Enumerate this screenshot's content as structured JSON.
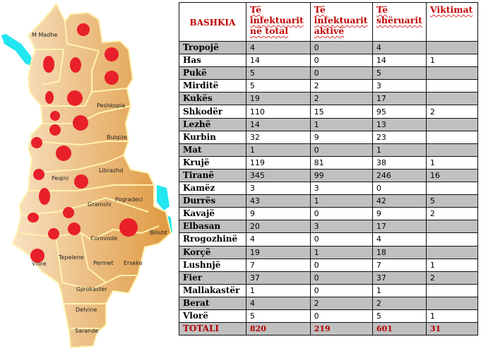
{
  "map": {
    "colors": {
      "land": "#e3a24a",
      "land_light": "#f6dcb6",
      "border": "#fff2b0",
      "water": "#22e6f0",
      "dot": "#e8202a"
    },
    "labels": [
      "M Madhe",
      "Peshkopia",
      "Bulqize",
      "Librazhd",
      "Peqini",
      "Gramshi",
      "Pogradeci",
      "Bilisht",
      "Corovode",
      "Tepelene",
      "Permet",
      "Erseke",
      "Gjirokaster",
      "Delvine",
      "Sarande",
      "Vlore"
    ]
  },
  "table": {
    "headers": [
      "BASHKIA",
      "Të infektuarit në total",
      "Të infektuarit aktivë",
      "Të shëruarit",
      "Viktimat"
    ],
    "rows": [
      [
        "Tropojë",
        "4",
        "0",
        "4",
        ""
      ],
      [
        "Has",
        "14",
        "0",
        "14",
        "1"
      ],
      [
        "Pukë",
        "5",
        "0",
        "5",
        ""
      ],
      [
        "Mirditë",
        "5",
        "2",
        "3",
        ""
      ],
      [
        "Kukës",
        "19",
        "2",
        "17",
        ""
      ],
      [
        "Shkodër",
        "110",
        "15",
        "95",
        "2"
      ],
      [
        "Lezhë",
        "14",
        "1",
        "13",
        ""
      ],
      [
        "Kurbin",
        "32",
        "9",
        "23",
        ""
      ],
      [
        "Mat",
        "1",
        "0",
        "1",
        ""
      ],
      [
        "Krujë",
        "119",
        "81",
        "38",
        "1"
      ],
      [
        "Tiranë",
        "345",
        "99",
        "246",
        "16"
      ],
      [
        "Kamëz",
        "3",
        "3",
        "0",
        ""
      ],
      [
        "Durrës",
        "43",
        "1",
        "42",
        "5"
      ],
      [
        "Kavajë",
        "9",
        "0",
        "9",
        "2"
      ],
      [
        "Elbasan",
        "20",
        "3",
        "17",
        ""
      ],
      [
        "Rrogozhinë",
        "4",
        "0",
        "4",
        ""
      ],
      [
        "Korçë",
        "19",
        "1",
        "18",
        ""
      ],
      [
        "Lushnjë",
        "7",
        "0",
        "7",
        "1"
      ],
      [
        "Fier",
        "37",
        "0",
        "37",
        "2"
      ],
      [
        "Mallakastër",
        "1",
        "0",
        "1",
        ""
      ],
      [
        "Berat",
        "4",
        "2",
        "2",
        ""
      ],
      [
        "Vlorë",
        "5",
        "0",
        "5",
        "1"
      ]
    ],
    "total": [
      "TOTALI",
      "820",
      "219",
      "601",
      "31"
    ]
  }
}
